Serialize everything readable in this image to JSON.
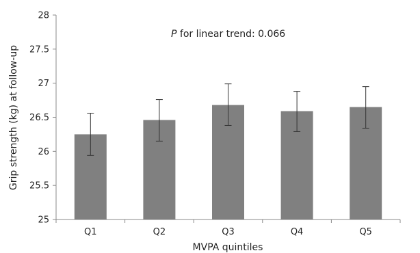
{
  "chart_data": {
    "type": "bar",
    "categories": [
      "Q1",
      "Q2",
      "Q3",
      "Q4",
      "Q5"
    ],
    "values": [
      26.25,
      26.46,
      26.68,
      26.59,
      26.65
    ],
    "error_low": [
      25.94,
      26.15,
      26.38,
      26.29,
      26.34
    ],
    "error_high": [
      26.56,
      26.76,
      26.99,
      26.88,
      26.95
    ],
    "xlabel": "MVPA quintiles",
    "ylabel": "Grip strength (kg) at follow-up",
    "ylim": [
      25,
      28
    ],
    "yticks": [
      "25",
      "25.5",
      "26",
      "26.5",
      "27",
      "27.5",
      "28"
    ],
    "grid": false,
    "legend": "none",
    "annotation": {
      "p_symbol": "P",
      "text": " for linear trend: 0.066"
    },
    "colors": {
      "bar": "#808080",
      "axis": "#888888",
      "error_bar": "#333333"
    }
  }
}
